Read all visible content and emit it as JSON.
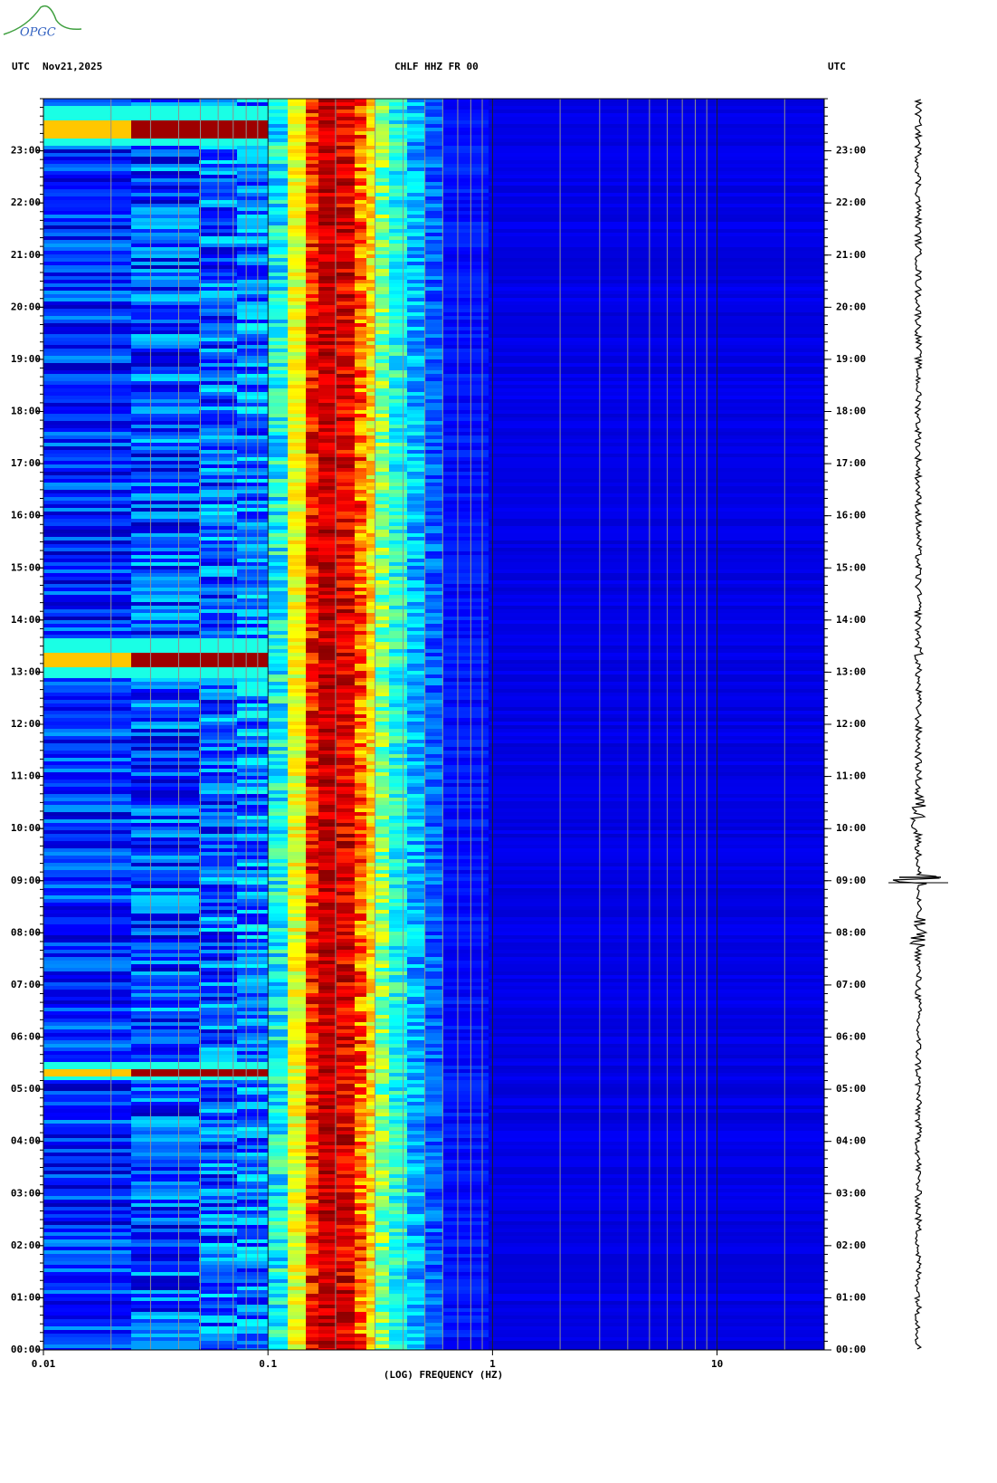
{
  "logo": "OPGC",
  "chart_data": {
    "type": "spectrogram",
    "timezone_left": "UTC",
    "date": "Nov21,2025",
    "title": "CHLF HHZ FR 00",
    "timezone_right": "UTC",
    "xlabel": "(LOG) FREQUENCY (HZ)",
    "xscale": "log",
    "xlim": [
      0.01,
      30
    ],
    "xticks": [
      0.01,
      0.1,
      1,
      10
    ],
    "xminorticks": [
      0.02,
      0.03,
      0.04,
      0.05,
      0.06,
      0.07,
      0.08,
      0.09,
      0.2,
      0.3,
      0.4,
      0.5,
      0.6,
      0.7,
      0.8,
      0.9,
      2,
      3,
      4,
      5,
      6,
      7,
      8,
      9,
      20
    ],
    "ylim": [
      0,
      24
    ],
    "yticks": [
      {
        "value": 0,
        "label": "00:00"
      },
      {
        "value": 1,
        "label": "01:00"
      },
      {
        "value": 2,
        "label": "02:00"
      },
      {
        "value": 3,
        "label": "03:00"
      },
      {
        "value": 4,
        "label": "04:00"
      },
      {
        "value": 5,
        "label": "05:00"
      },
      {
        "value": 6,
        "label": "06:00"
      },
      {
        "value": 7,
        "label": "07:00"
      },
      {
        "value": 8,
        "label": "08:00"
      },
      {
        "value": 9,
        "label": "09:00"
      },
      {
        "value": 10,
        "label": "10:00"
      },
      {
        "value": 11,
        "label": "11:00"
      },
      {
        "value": 12,
        "label": "12:00"
      },
      {
        "value": 13,
        "label": "13:00"
      },
      {
        "value": 14,
        "label": "14:00"
      },
      {
        "value": 15,
        "label": "15:00"
      },
      {
        "value": 16,
        "label": "16:00"
      },
      {
        "value": 17,
        "label": "17:00"
      },
      {
        "value": 18,
        "label": "18:00"
      },
      {
        "value": 19,
        "label": "19:00"
      },
      {
        "value": 20,
        "label": "20:00"
      },
      {
        "value": 21,
        "label": "21:00"
      },
      {
        "value": 22,
        "label": "22:00"
      },
      {
        "value": 23,
        "label": "23:00"
      }
    ],
    "grid": true
  }
}
